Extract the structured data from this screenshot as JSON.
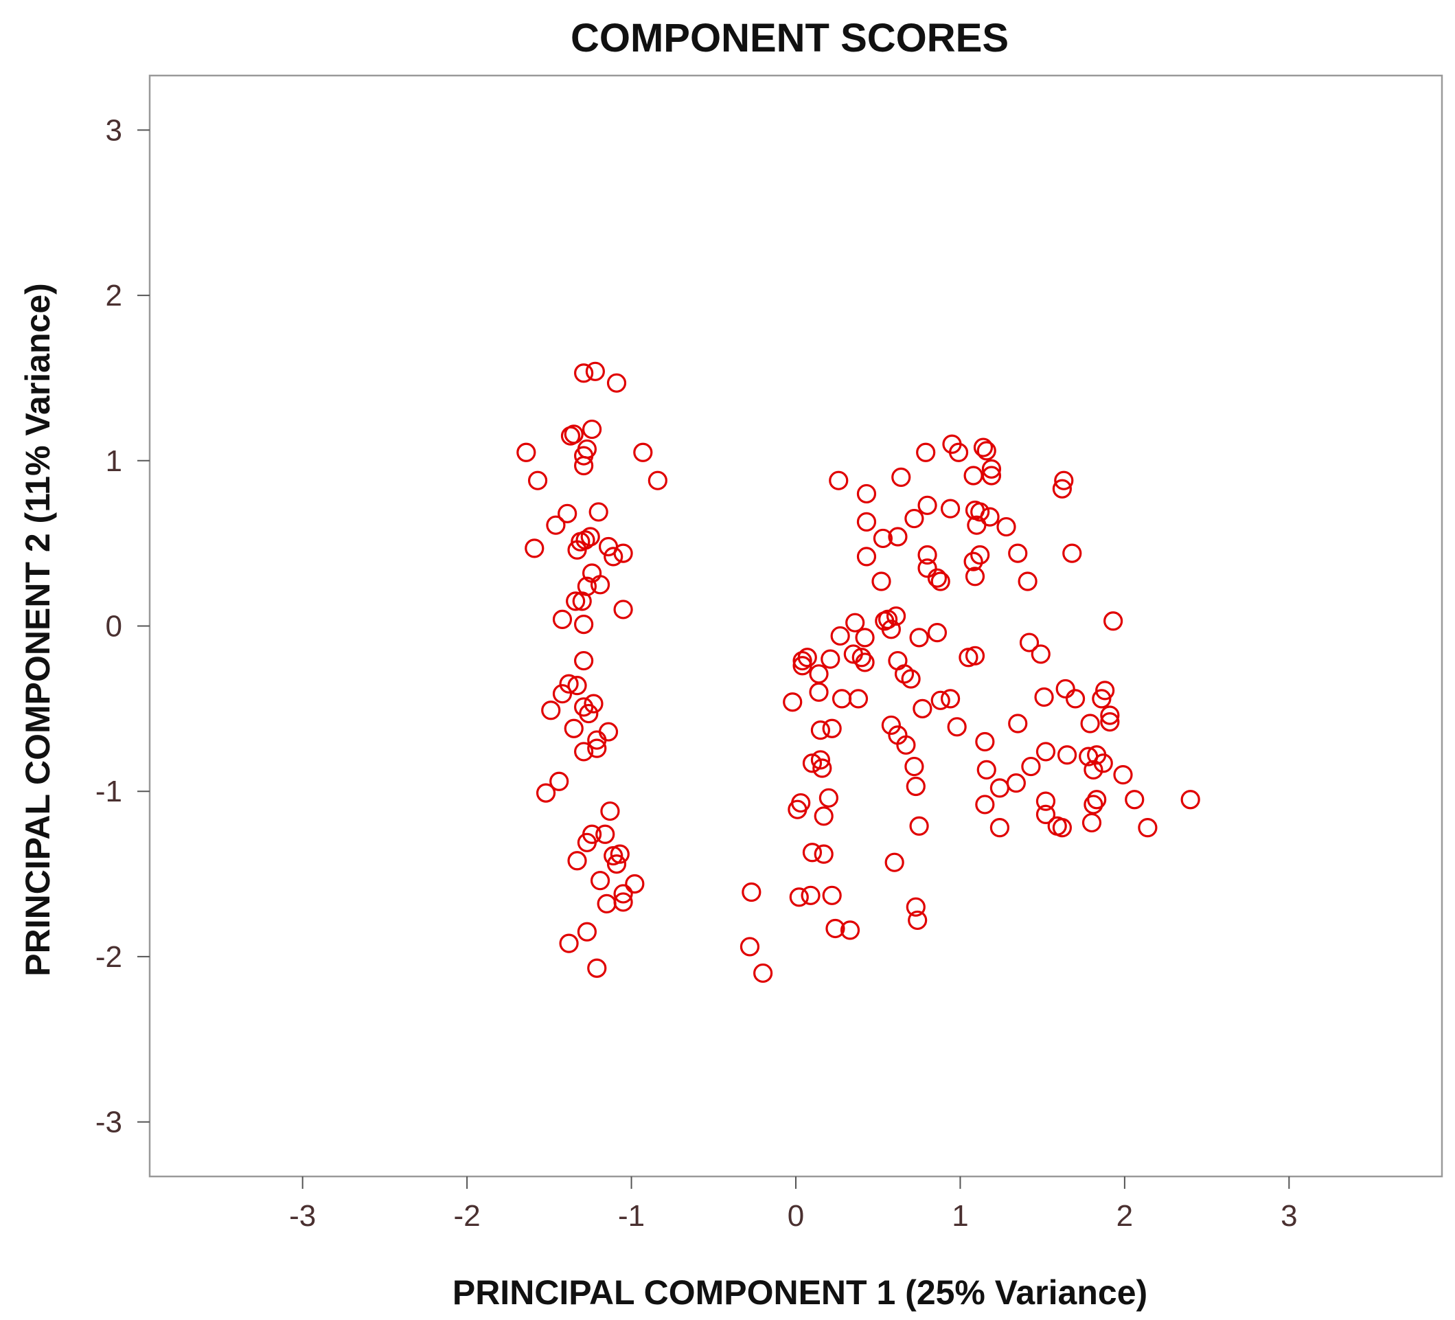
{
  "chart_data": {
    "type": "scatter",
    "title": "COMPONENT SCORES",
    "xlabel": "PRINCIPAL COMPONENT 1 (25% Variance)",
    "ylabel": "PRINCIPAL COMPONENT 2 (11% Variance)",
    "xlim": [
      -3.93,
      3.93
    ],
    "ylim": [
      -3.33,
      3.33
    ],
    "xticks": [
      -3,
      -2,
      -1,
      0,
      1,
      2,
      3
    ],
    "yticks": [
      -3,
      -2,
      -1,
      0,
      1,
      2,
      3
    ],
    "xtick_labels": [
      "-3",
      "-2",
      "-1",
      "0",
      "1",
      "2",
      "3"
    ],
    "ytick_labels": [
      "-3",
      "-2",
      "-1",
      "0",
      "1",
      "2",
      "3"
    ],
    "grid": false,
    "legend": "none",
    "marker": "open-circle",
    "color": "#e00000",
    "series": [
      {
        "points": [
          [
            -1.29,
            1.53
          ],
          [
            -1.22,
            1.54
          ],
          [
            -1.09,
            1.47
          ],
          [
            -1.35,
            1.16
          ],
          [
            -1.37,
            1.15
          ],
          [
            -1.24,
            1.19
          ],
          [
            -1.29,
            1.03
          ],
          [
            -1.27,
            1.07
          ],
          [
            -1.29,
            0.97
          ],
          [
            -1.64,
            1.05
          ],
          [
            -1.57,
            0.88
          ],
          [
            -0.93,
            1.05
          ],
          [
            -0.84,
            0.88
          ],
          [
            -1.39,
            0.68
          ],
          [
            -1.46,
            0.61
          ],
          [
            -1.2,
            0.69
          ],
          [
            -1.59,
            0.47
          ],
          [
            -1.31,
            0.51
          ],
          [
            -1.28,
            0.52
          ],
          [
            -1.25,
            0.54
          ],
          [
            -1.33,
            0.46
          ],
          [
            -1.14,
            0.48
          ],
          [
            -1.11,
            0.42
          ],
          [
            -1.05,
            0.44
          ],
          [
            -1.24,
            0.32
          ],
          [
            -1.27,
            0.24
          ],
          [
            -1.19,
            0.25
          ],
          [
            -1.34,
            0.15
          ],
          [
            -1.3,
            0.15
          ],
          [
            -1.42,
            0.04
          ],
          [
            -1.29,
            0.01
          ],
          [
            -1.05,
            0.1
          ],
          [
            -1.29,
            -0.21
          ],
          [
            -1.38,
            -0.35
          ],
          [
            -1.33,
            -0.36
          ],
          [
            -1.42,
            -0.41
          ],
          [
            -1.23,
            -0.47
          ],
          [
            -1.29,
            -0.49
          ],
          [
            -1.26,
            -0.53
          ],
          [
            -1.49,
            -0.51
          ],
          [
            -1.35,
            -0.62
          ],
          [
            -1.21,
            -0.69
          ],
          [
            -1.14,
            -0.64
          ],
          [
            -1.21,
            -0.74
          ],
          [
            -1.29,
            -0.76
          ],
          [
            -1.44,
            -0.94
          ],
          [
            -1.52,
            -1.01
          ],
          [
            -1.13,
            -1.12
          ],
          [
            -1.24,
            -1.26
          ],
          [
            -1.16,
            -1.26
          ],
          [
            -1.27,
            -1.31
          ],
          [
            -1.33,
            -1.42
          ],
          [
            -1.11,
            -1.39
          ],
          [
            -1.07,
            -1.38
          ],
          [
            -1.09,
            -1.44
          ],
          [
            -1.19,
            -1.54
          ],
          [
            -0.98,
            -1.56
          ],
          [
            -1.05,
            -1.62
          ],
          [
            -1.15,
            -1.68
          ],
          [
            -1.05,
            -1.67
          ],
          [
            -1.27,
            -1.85
          ],
          [
            -1.38,
            -1.92
          ],
          [
            -1.21,
            -2.07
          ],
          [
            -0.27,
            -1.61
          ],
          [
            -0.28,
            -1.94
          ],
          [
            -0.2,
            -2.1
          ],
          [
            0.95,
            1.1
          ],
          [
            1.14,
            1.08
          ],
          [
            1.16,
            1.06
          ],
          [
            0.79,
            1.05
          ],
          [
            0.99,
            1.05
          ],
          [
            1.19,
            0.95
          ],
          [
            1.19,
            0.91
          ],
          [
            1.08,
            0.91
          ],
          [
            0.26,
            0.88
          ],
          [
            0.64,
            0.9
          ],
          [
            1.63,
            0.88
          ],
          [
            1.62,
            0.83
          ],
          [
            0.43,
            0.8
          ],
          [
            0.8,
            0.73
          ],
          [
            0.94,
            0.71
          ],
          [
            1.09,
            0.7
          ],
          [
            1.12,
            0.69
          ],
          [
            0.72,
            0.65
          ],
          [
            1.18,
            0.66
          ],
          [
            0.43,
            0.63
          ],
          [
            1.1,
            0.61
          ],
          [
            1.28,
            0.6
          ],
          [
            0.53,
            0.53
          ],
          [
            0.62,
            0.54
          ],
          [
            0.8,
            0.43
          ],
          [
            1.12,
            0.43
          ],
          [
            1.08,
            0.39
          ],
          [
            0.43,
            0.42
          ],
          [
            1.35,
            0.44
          ],
          [
            1.68,
            0.44
          ],
          [
            0.8,
            0.35
          ],
          [
            0.52,
            0.27
          ],
          [
            0.86,
            0.29
          ],
          [
            0.88,
            0.27
          ],
          [
            1.09,
            0.3
          ],
          [
            1.41,
            0.27
          ],
          [
            0.36,
            0.02
          ],
          [
            0.54,
            0.03
          ],
          [
            0.56,
            0.04
          ],
          [
            0.61,
            0.06
          ],
          [
            0.58,
            -0.02
          ],
          [
            1.93,
            0.03
          ],
          [
            0.27,
            -0.06
          ],
          [
            0.42,
            -0.07
          ],
          [
            0.75,
            -0.07
          ],
          [
            0.86,
            -0.04
          ],
          [
            1.42,
            -0.1
          ],
          [
            1.49,
            -0.17
          ],
          [
            0.04,
            -0.21
          ],
          [
            0.07,
            -0.19
          ],
          [
            0.04,
            -0.24
          ],
          [
            0.21,
            -0.2
          ],
          [
            0.4,
            -0.19
          ],
          [
            0.42,
            -0.22
          ],
          [
            0.35,
            -0.17
          ],
          [
            1.05,
            -0.19
          ],
          [
            1.09,
            -0.18
          ],
          [
            0.14,
            -0.29
          ],
          [
            0.62,
            -0.21
          ],
          [
            0.66,
            -0.29
          ],
          [
            0.7,
            -0.32
          ],
          [
            0.14,
            -0.4
          ],
          [
            0.28,
            -0.44
          ],
          [
            0.38,
            -0.44
          ],
          [
            -0.02,
            -0.46
          ],
          [
            0.88,
            -0.45
          ],
          [
            0.94,
            -0.44
          ],
          [
            0.77,
            -0.5
          ],
          [
            1.51,
            -0.43
          ],
          [
            1.64,
            -0.38
          ],
          [
            1.7,
            -0.44
          ],
          [
            1.88,
            -0.39
          ],
          [
            1.86,
            -0.44
          ],
          [
            0.58,
            -0.6
          ],
          [
            0.62,
            -0.66
          ],
          [
            0.67,
            -0.72
          ],
          [
            0.98,
            -0.61
          ],
          [
            1.35,
            -0.59
          ],
          [
            1.79,
            -0.59
          ],
          [
            1.91,
            -0.54
          ],
          [
            1.91,
            -0.58
          ],
          [
            0.15,
            -0.63
          ],
          [
            0.22,
            -0.62
          ],
          [
            0.1,
            -0.83
          ],
          [
            0.15,
            -0.81
          ],
          [
            0.16,
            -0.86
          ],
          [
            0.72,
            -0.85
          ],
          [
            1.15,
            -0.7
          ],
          [
            1.52,
            -0.76
          ],
          [
            1.65,
            -0.78
          ],
          [
            1.78,
            -0.79
          ],
          [
            1.83,
            -0.78
          ],
          [
            1.87,
            -0.83
          ],
          [
            1.81,
            -0.87
          ],
          [
            1.99,
            -0.9
          ],
          [
            1.43,
            -0.85
          ],
          [
            1.16,
            -0.87
          ],
          [
            0.73,
            -0.97
          ],
          [
            1.24,
            -0.98
          ],
          [
            1.34,
            -0.95
          ],
          [
            0.2,
            -1.04
          ],
          [
            0.01,
            -1.11
          ],
          [
            0.03,
            -1.07
          ],
          [
            0.17,
            -1.15
          ],
          [
            1.15,
            -1.08
          ],
          [
            1.52,
            -1.06
          ],
          [
            1.52,
            -1.14
          ],
          [
            1.81,
            -1.08
          ],
          [
            1.83,
            -1.05
          ],
          [
            2.06,
            -1.05
          ],
          [
            2.4,
            -1.05
          ],
          [
            0.75,
            -1.21
          ],
          [
            1.24,
            -1.22
          ],
          [
            1.59,
            -1.21
          ],
          [
            1.62,
            -1.22
          ],
          [
            1.8,
            -1.19
          ],
          [
            2.14,
            -1.22
          ],
          [
            0.1,
            -1.37
          ],
          [
            0.17,
            -1.38
          ],
          [
            0.6,
            -1.43
          ],
          [
            0.02,
            -1.64
          ],
          [
            0.09,
            -1.63
          ],
          [
            0.22,
            -1.63
          ],
          [
            0.73,
            -1.7
          ],
          [
            0.74,
            -1.78
          ],
          [
            0.24,
            -1.83
          ],
          [
            0.33,
            -1.84
          ]
        ]
      }
    ]
  }
}
